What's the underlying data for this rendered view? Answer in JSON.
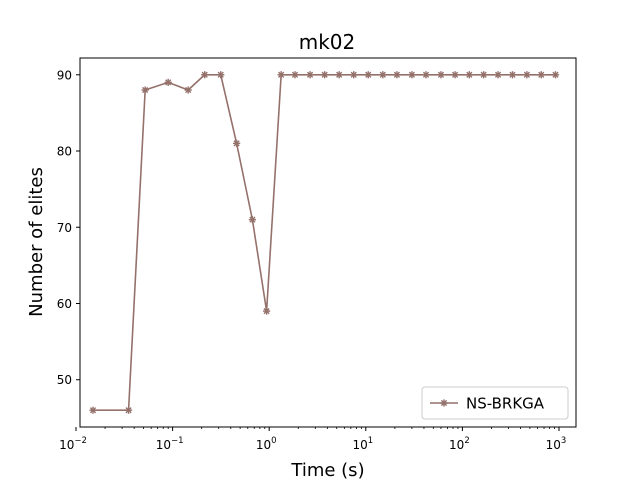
{
  "chart_data": {
    "type": "line",
    "title": "mk02",
    "xlabel": "Time (s)",
    "ylabel": "Number of elites",
    "xscale": "log",
    "xlim": [
      0.011,
      1500
    ],
    "ylim": [
      43.8,
      92.2
    ],
    "xticks": [
      {
        "value": 0.01,
        "base": "10",
        "exp": "−2"
      },
      {
        "value": 0.1,
        "base": "10",
        "exp": "−1"
      },
      {
        "value": 1,
        "base": "10",
        "exp": "0"
      },
      {
        "value": 10,
        "base": "10",
        "exp": "1"
      },
      {
        "value": 100,
        "base": "10",
        "exp": "2"
      },
      {
        "value": 1000,
        "base": "10",
        "exp": "3"
      }
    ],
    "yticks": [
      50,
      60,
      70,
      80,
      90
    ],
    "legend_position": "lower-right",
    "series": [
      {
        "name": "NS-BRKGA",
        "color": "#94716b",
        "marker": "asterisk",
        "x": [
          0.015,
          0.035,
          0.052,
          0.09,
          0.145,
          0.215,
          0.315,
          0.46,
          0.67,
          0.94,
          1.33,
          1.85,
          2.65,
          3.75,
          5.3,
          7.5,
          10.6,
          15,
          21,
          30,
          42,
          60,
          84,
          118,
          166,
          234,
          330,
          465,
          655,
          920
        ],
        "y": [
          46,
          46,
          88,
          89,
          88,
          90,
          90,
          81,
          71,
          59,
          90,
          90,
          90,
          90,
          90,
          90,
          90,
          90,
          90,
          90,
          90,
          90,
          90,
          90,
          90,
          90,
          90,
          90,
          90,
          90
        ]
      }
    ]
  }
}
